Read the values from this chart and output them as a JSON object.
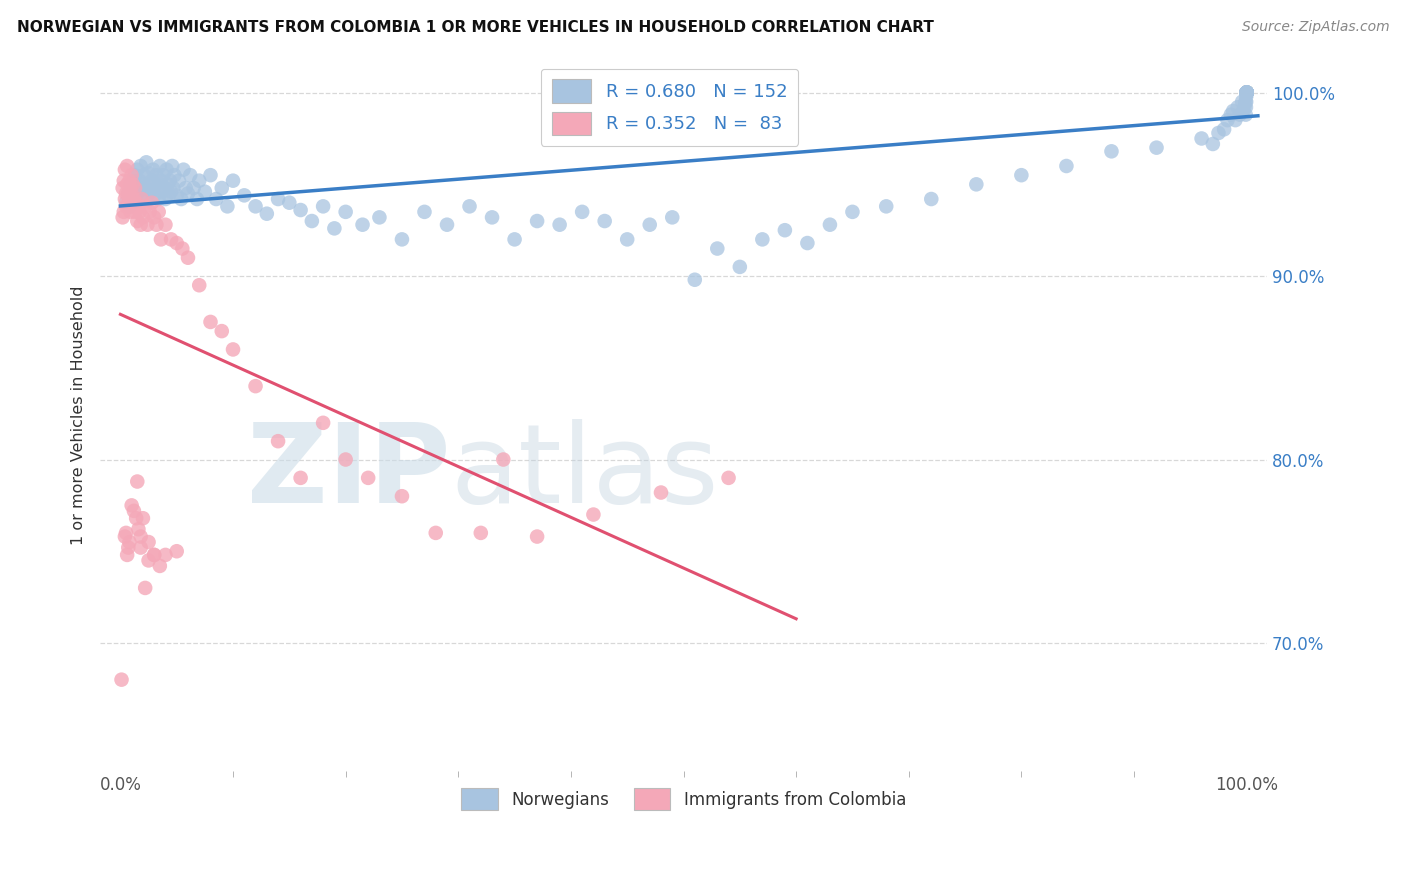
{
  "title": "NORWEGIAN VS IMMIGRANTS FROM COLOMBIA 1 OR MORE VEHICLES IN HOUSEHOLD CORRELATION CHART",
  "source": "Source: ZipAtlas.com",
  "ylabel": "1 or more Vehicles in Household",
  "blue_color": "#a8c4e0",
  "pink_color": "#f4a8b8",
  "line_blue": "#3a7ec6",
  "line_pink": "#e05070",
  "background_color": "#ffffff",
  "grid_color": "#d8d8d8",
  "legend_value_color": "#3a7ec6",
  "blue_x": [
    0.005,
    0.007,
    0.008,
    0.009,
    0.01,
    0.011,
    0.012,
    0.013,
    0.014,
    0.015,
    0.016,
    0.017,
    0.018,
    0.019,
    0.02,
    0.021,
    0.022,
    0.023,
    0.024,
    0.025,
    0.026,
    0.027,
    0.028,
    0.029,
    0.03,
    0.031,
    0.032,
    0.033,
    0.034,
    0.035,
    0.036,
    0.037,
    0.038,
    0.039,
    0.04,
    0.041,
    0.042,
    0.043,
    0.044,
    0.045,
    0.046,
    0.047,
    0.048,
    0.05,
    0.052,
    0.054,
    0.056,
    0.058,
    0.06,
    0.062,
    0.065,
    0.068,
    0.07,
    0.075,
    0.08,
    0.085,
    0.09,
    0.095,
    0.1,
    0.11,
    0.12,
    0.13,
    0.14,
    0.15,
    0.16,
    0.17,
    0.18,
    0.19,
    0.2,
    0.215,
    0.23,
    0.25,
    0.27,
    0.29,
    0.31,
    0.33,
    0.35,
    0.37,
    0.39,
    0.41,
    0.43,
    0.45,
    0.47,
    0.49,
    0.51,
    0.53,
    0.55,
    0.57,
    0.59,
    0.61,
    0.63,
    0.65,
    0.68,
    0.72,
    0.76,
    0.8,
    0.84,
    0.88,
    0.92,
    0.96,
    0.97,
    0.975,
    0.98,
    0.983,
    0.986,
    0.988,
    0.99,
    0.992,
    0.994,
    0.996,
    0.997,
    0.998,
    0.999,
    0.9992,
    0.9994,
    0.9996,
    0.9997,
    0.9998,
    0.9999,
    1.0,
    1.0,
    1.0,
    1.0,
    1.0,
    1.0,
    1.0,
    1.0,
    1.0,
    1.0,
    1.0,
    1.0,
    1.0,
    1.0,
    1.0,
    1.0,
    1.0,
    1.0,
    1.0,
    1.0,
    1.0,
    1.0,
    1.0,
    1.0,
    1.0,
    1.0,
    1.0,
    1.0,
    1.0,
    1.0,
    1.0,
    1.0,
    1.0
  ],
  "blue_y": [
    0.94,
    0.945,
    0.938,
    0.95,
    0.942,
    0.948,
    0.952,
    0.955,
    0.944,
    0.958,
    0.946,
    0.952,
    0.96,
    0.942,
    0.95,
    0.955,
    0.948,
    0.962,
    0.944,
    0.956,
    0.95,
    0.946,
    0.952,
    0.958,
    0.944,
    0.95,
    0.955,
    0.948,
    0.942,
    0.96,
    0.952,
    0.946,
    0.955,
    0.948,
    0.942,
    0.958,
    0.95,
    0.944,
    0.952,
    0.946,
    0.96,
    0.948,
    0.955,
    0.944,
    0.952,
    0.942,
    0.958,
    0.948,
    0.945,
    0.955,
    0.948,
    0.942,
    0.952,
    0.946,
    0.955,
    0.942,
    0.948,
    0.938,
    0.952,
    0.944,
    0.938,
    0.934,
    0.942,
    0.94,
    0.936,
    0.93,
    0.938,
    0.926,
    0.935,
    0.928,
    0.932,
    0.92,
    0.935,
    0.928,
    0.938,
    0.932,
    0.92,
    0.93,
    0.928,
    0.935,
    0.93,
    0.92,
    0.928,
    0.932,
    0.898,
    0.915,
    0.905,
    0.92,
    0.925,
    0.918,
    0.928,
    0.935,
    0.938,
    0.942,
    0.95,
    0.955,
    0.96,
    0.968,
    0.97,
    0.975,
    0.972,
    0.978,
    0.98,
    0.985,
    0.988,
    0.99,
    0.985,
    0.992,
    0.988,
    0.995,
    0.99,
    0.992,
    0.995,
    0.988,
    0.992,
    0.995,
    0.998,
    1.0,
    1.0,
    1.0,
    1.0,
    1.0,
    1.0,
    1.0,
    1.0,
    1.0,
    1.0,
    1.0,
    1.0,
    1.0,
    1.0,
    1.0,
    1.0,
    1.0,
    1.0,
    1.0,
    1.0,
    1.0,
    1.0,
    1.0,
    1.0,
    1.0,
    1.0,
    1.0,
    1.0,
    1.0,
    1.0,
    1.0,
    1.0,
    1.0,
    1.0,
    1.0
  ],
  "pink_x": [
    0.001,
    0.002,
    0.002,
    0.003,
    0.003,
    0.004,
    0.004,
    0.005,
    0.005,
    0.006,
    0.006,
    0.007,
    0.007,
    0.008,
    0.008,
    0.009,
    0.009,
    0.01,
    0.01,
    0.011,
    0.011,
    0.012,
    0.013,
    0.013,
    0.014,
    0.015,
    0.016,
    0.017,
    0.018,
    0.019,
    0.02,
    0.022,
    0.024,
    0.026,
    0.028,
    0.03,
    0.032,
    0.034,
    0.036,
    0.04,
    0.045,
    0.05,
    0.055,
    0.06,
    0.07,
    0.08,
    0.09,
    0.1,
    0.12,
    0.14,
    0.16,
    0.18,
    0.2,
    0.22,
    0.25,
    0.28,
    0.32,
    0.37,
    0.42,
    0.48,
    0.54,
    0.34,
    0.015,
    0.02,
    0.025,
    0.03,
    0.01,
    0.012,
    0.014,
    0.016,
    0.018,
    0.008,
    0.007,
    0.006,
    0.005,
    0.004,
    0.022,
    0.025,
    0.03,
    0.018,
    0.035,
    0.04,
    0.05
  ],
  "pink_y": [
    0.68,
    0.948,
    0.932,
    0.935,
    0.952,
    0.942,
    0.958,
    0.945,
    0.938,
    0.95,
    0.96,
    0.945,
    0.938,
    0.952,
    0.942,
    0.948,
    0.935,
    0.955,
    0.945,
    0.938,
    0.95,
    0.942,
    0.948,
    0.935,
    0.94,
    0.93,
    0.938,
    0.935,
    0.928,
    0.942,
    0.932,
    0.938,
    0.928,
    0.935,
    0.94,
    0.932,
    0.928,
    0.935,
    0.92,
    0.928,
    0.92,
    0.918,
    0.915,
    0.91,
    0.895,
    0.875,
    0.87,
    0.86,
    0.84,
    0.81,
    0.79,
    0.82,
    0.8,
    0.79,
    0.78,
    0.76,
    0.76,
    0.758,
    0.77,
    0.782,
    0.79,
    0.8,
    0.788,
    0.768,
    0.755,
    0.748,
    0.775,
    0.772,
    0.768,
    0.762,
    0.758,
    0.755,
    0.752,
    0.748,
    0.76,
    0.758,
    0.73,
    0.745,
    0.748,
    0.752,
    0.742,
    0.748,
    0.75
  ],
  "ylim_low": 0.63,
  "ylim_high": 1.018,
  "xlim_low": -0.018,
  "xlim_high": 1.018,
  "yticks": [
    0.7,
    0.8,
    0.9,
    1.0
  ],
  "ytick_labels": [
    "70.0%",
    "80.0%",
    "90.0%",
    "100.0%"
  ]
}
